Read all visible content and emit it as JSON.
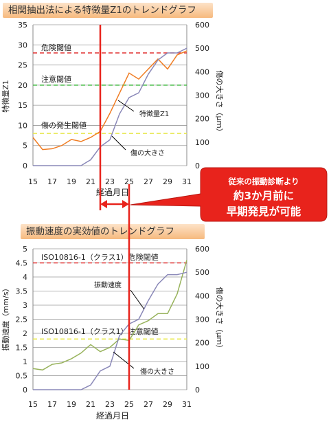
{
  "chart_data": [
    {
      "type": "line",
      "title": "相関抽出法による特徴量Z1のトレンドグラフ",
      "xlabel": "経過月日",
      "ylabel": "特徴量Z1",
      "ylabel_right": "傷の大きさ（μｍ）",
      "x_ticks": [
        "15",
        "17",
        "19",
        "21",
        "23",
        "25",
        "27",
        "29",
        "31"
      ],
      "xlim": [
        15,
        31
      ],
      "ylim": [
        0,
        35
      ],
      "y_ticks": [
        "0",
        "5",
        "10",
        "15",
        "20",
        "25",
        "30",
        "35"
      ],
      "ylim_right": [
        0,
        600
      ],
      "y_ticks_right": [
        "0",
        "100",
        "200",
        "300",
        "400",
        "500",
        "600"
      ],
      "grid": true,
      "thresholds": [
        {
          "label": "危険閾値",
          "value": 28,
          "color": "#e03030"
        },
        {
          "label": "注意閾値",
          "value": 20,
          "color": "#3fb83f"
        },
        {
          "label": "傷の発生閾値",
          "value": 8,
          "color": "#e8e84a"
        }
      ],
      "series": [
        {
          "name": "特徴量Z1",
          "axis": "left",
          "color": "#f07c22",
          "x": [
            15,
            16,
            17,
            18,
            19,
            20,
            21,
            22,
            23,
            24,
            25,
            26,
            27,
            28,
            29,
            30,
            31
          ],
          "y": [
            7,
            4,
            4.2,
            5,
            6.5,
            6,
            7,
            8.5,
            13,
            18,
            23,
            21.5,
            24,
            26.5,
            24,
            27.5,
            28.5
          ]
        },
        {
          "name": "傷の大きさ",
          "axis": "right",
          "color": "#8a88b8",
          "x": [
            15,
            16,
            17,
            18,
            19,
            20,
            21,
            22,
            23,
            24,
            25,
            26,
            27,
            28,
            29,
            30,
            31
          ],
          "y": [
            0,
            0,
            0,
            0,
            0,
            0,
            25,
            80,
            110,
            220,
            290,
            310,
            390,
            450,
            480,
            480,
            500
          ]
        }
      ],
      "annotations": [
        "特徴量Z1",
        "傷の大きさ"
      ]
    },
    {
      "type": "line",
      "title": "振動速度の実効値のトレンドグラフ",
      "xlabel": "経過月日",
      "ylabel": "振動速度（mm/s）",
      "ylabel_right": "傷の大きさ（μｍ）",
      "x_ticks": [
        "15",
        "17",
        "19",
        "21",
        "23",
        "25",
        "27",
        "29",
        "31"
      ],
      "xlim": [
        15,
        31
      ],
      "ylim": [
        0,
        5
      ],
      "y_ticks": [
        "0",
        "0.5",
        "1",
        "1.5",
        "2",
        "2.5",
        "3",
        "3.5",
        "4",
        "4.5",
        "5"
      ],
      "ylim_right": [
        0,
        600
      ],
      "y_ticks_right": [
        "0",
        "100",
        "200",
        "300",
        "400",
        "500",
        "600"
      ],
      "grid": true,
      "thresholds": [
        {
          "label": "ISO10816-1（クラス1）危険閾値",
          "value": 4.5,
          "color": "#e03030"
        },
        {
          "label": "ISO10816-1（クラス1）注意閾値",
          "value": 1.8,
          "color": "#e8e84a"
        }
      ],
      "series": [
        {
          "name": "振動速度",
          "axis": "left",
          "color": "#98b35c",
          "x": [
            15,
            16,
            17,
            18,
            19,
            20,
            21,
            22,
            23,
            24,
            25,
            26,
            27,
            28,
            29,
            30,
            31
          ],
          "y": [
            0.75,
            0.7,
            0.9,
            0.95,
            1.1,
            1.3,
            1.6,
            1.35,
            1.5,
            1.8,
            1.75,
            2.3,
            2.45,
            2.7,
            2.7,
            3.4,
            4.6
          ]
        },
        {
          "name": "傷の大きさ",
          "axis": "right",
          "color": "#8a88b8",
          "x": [
            15,
            16,
            17,
            18,
            19,
            20,
            21,
            22,
            23,
            24,
            25,
            26,
            27,
            28,
            29,
            30,
            31
          ],
          "y": [
            0,
            0,
            0,
            0,
            0,
            0,
            20,
            80,
            100,
            230,
            280,
            300,
            380,
            450,
            490,
            490,
            500
          ]
        }
      ],
      "annotations": [
        "振動速度",
        "傷の大きさ"
      ]
    }
  ],
  "callout": {
    "line1": "従来の振動診断より",
    "line2": "約3か月前に",
    "line3": "早期発見が可能",
    "color": "#e8231c"
  },
  "markers": {
    "color": "#e8231c",
    "early_detection_x": 22,
    "conventional_detection_x": 25
  }
}
